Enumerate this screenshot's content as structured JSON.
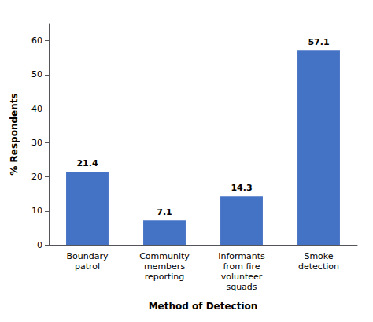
{
  "chart_data": {
    "type": "bar",
    "categories": [
      "Boundary\npatrol",
      "Community\nmembers\nreporting",
      "Informants\nfrom fire\nvolunteer\nsquads",
      "Smoke\ndetection"
    ],
    "values": [
      21.4,
      7.1,
      14.3,
      57.1
    ],
    "color": "#4472C4",
    "xlabel": "Method of Detection",
    "ylabel": "% Respondents",
    "ylim": [
      0,
      65
    ],
    "yticks": [
      0,
      10,
      20,
      30,
      40,
      50,
      60
    ],
    "data_labels": true,
    "grid": false
  }
}
